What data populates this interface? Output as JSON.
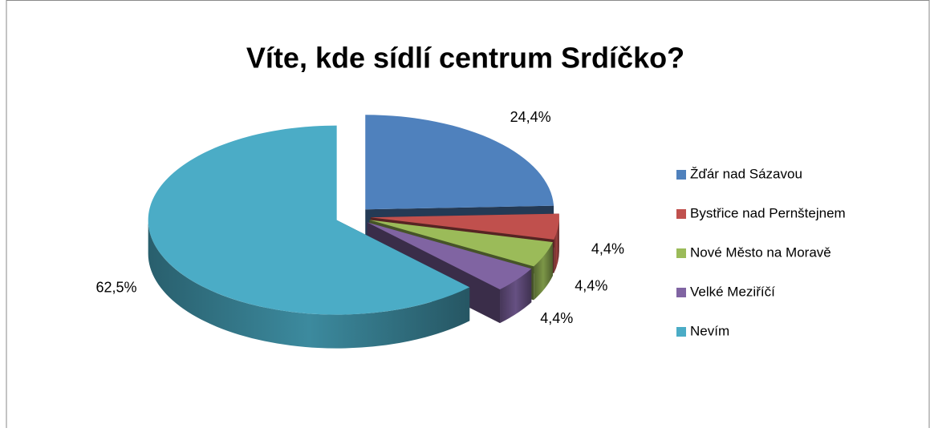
{
  "chart_data": {
    "type": "pie3d",
    "title": "Víte, kde sídlí centrum Srdíčko?",
    "categories": [
      "Žďár nad Sázavou",
      "Bystřice nad Pernštejnem",
      "Nové Město na Moravě",
      "Velké Meziříčí",
      "Nevím"
    ],
    "values": [
      24.4,
      4.4,
      4.4,
      4.4,
      62.5
    ],
    "value_labels": [
      "24,4%",
      "4,4%",
      "4,4%",
      "4,4%",
      "62,5%"
    ],
    "colors": [
      "#4f81bd",
      "#c0504d",
      "#9bbb59",
      "#8064a2",
      "#4bacc6"
    ],
    "legend": "right"
  }
}
